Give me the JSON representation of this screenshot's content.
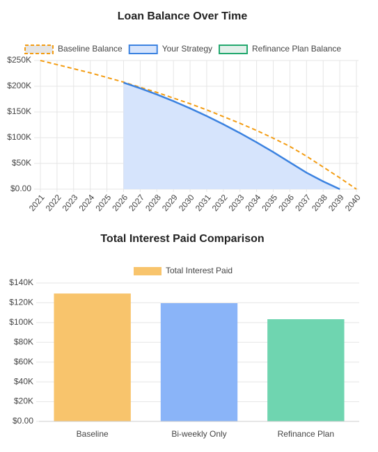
{
  "chart_data": [
    {
      "type": "line",
      "title": "Loan Balance Over Time",
      "categories": [
        "2021",
        "2022",
        "2023",
        "2024",
        "2025",
        "2026",
        "2027",
        "2028",
        "2029",
        "2030",
        "2031",
        "2032",
        "2033",
        "2034",
        "2035",
        "2036",
        "2037",
        "2038",
        "2039",
        "2040"
      ],
      "series": [
        {
          "name": "Baseline Balance",
          "color": "#f39c12",
          "dashed": true,
          "values": [
            250000,
            242000,
            234000,
            226000,
            217000,
            208000,
            198000,
            188000,
            177000,
            166000,
            154000,
            141000,
            128000,
            114000,
            99000,
            83000,
            64000,
            43000,
            22000,
            0
          ]
        },
        {
          "name": "Your Strategy",
          "color": "#3b82e0",
          "fill": "#d6e4fc",
          "values": [
            null,
            null,
            null,
            null,
            null,
            207000,
            196000,
            184000,
            171000,
            157000,
            142000,
            126000,
            109000,
            91000,
            72000,
            52000,
            32000,
            15000,
            0,
            null
          ]
        },
        {
          "name": "Refinance Plan Balance",
          "color": "#22a86e",
          "values": [
            null,
            null,
            null,
            null,
            null,
            null,
            null,
            null,
            null,
            null,
            null,
            null,
            null,
            null,
            null,
            null,
            null,
            null,
            null,
            null
          ]
        }
      ],
      "ylim": [
        0,
        250000
      ],
      "yticks": [
        {
          "value": 0,
          "label": "$0.00"
        },
        {
          "value": 50000,
          "label": "$50K"
        },
        {
          "value": 100000,
          "label": "$100K"
        },
        {
          "value": 150000,
          "label": "$150K"
        },
        {
          "value": 200000,
          "label": "$200K"
        },
        {
          "value": 250000,
          "label": "$250K"
        }
      ],
      "grid": true
    },
    {
      "type": "bar",
      "title": "Total Interest Paid Comparison",
      "categories": [
        "Baseline",
        "Bi-weekly Only",
        "Refinance Plan"
      ],
      "series": [
        {
          "name": "Total Interest Paid",
          "color": "#f8c46c",
          "colors": [
            "#f8c46c",
            "#8ab4f8",
            "#6fd5b0"
          ],
          "values": [
            129400,
            119600,
            103400
          ]
        }
      ],
      "ylim": [
        0,
        140000
      ],
      "yticks": [
        {
          "value": 0,
          "label": "$0.00"
        },
        {
          "value": 20000,
          "label": "$20K"
        },
        {
          "value": 40000,
          "label": "$40K"
        },
        {
          "value": 60000,
          "label": "$60K"
        },
        {
          "value": 80000,
          "label": "$80K"
        },
        {
          "value": 100000,
          "label": "$100K"
        },
        {
          "value": 120000,
          "label": "$120K"
        },
        {
          "value": 140000,
          "label": "$140K"
        }
      ],
      "grid": true
    }
  ]
}
